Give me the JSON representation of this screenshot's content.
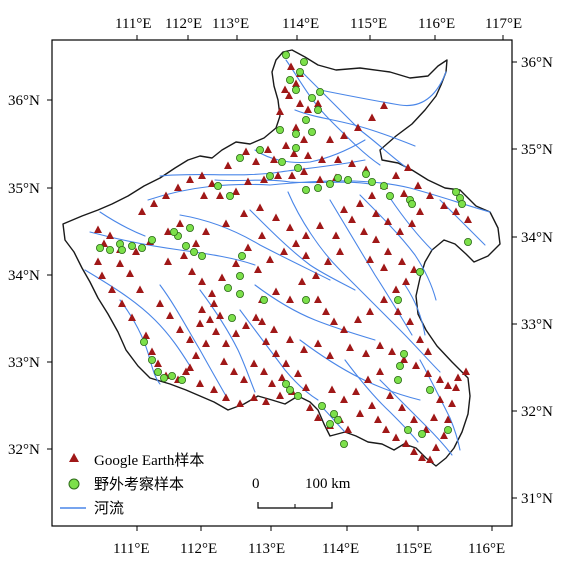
{
  "map": {
    "top_lon_labels": [
      "111°E",
      "112°E",
      "113°E",
      "114°E",
      "115°E",
      "116°E",
      "117°E"
    ],
    "bottom_lon_labels": [
      "111°E",
      "112°E",
      "113°E",
      "114°E",
      "115°E",
      "116°E"
    ],
    "left_lat_labels": [
      "36°N",
      "35°N",
      "34°N",
      "33°N",
      "32°N"
    ],
    "right_lat_labels": [
      "36°N",
      "35°N",
      "34°N",
      "33°N",
      "32°N",
      "31°N"
    ],
    "legend": {
      "items": [
        {
          "label": "Google Earth样本",
          "symbol": "triangle",
          "color": "#a01818"
        },
        {
          "label": "野外考察样本",
          "symbol": "circle",
          "color": "#7ce04a"
        },
        {
          "label": "河流",
          "symbol": "line",
          "color": "#4a86e8"
        }
      ]
    },
    "scale_bar": {
      "start_label": "0",
      "end_label": "100 km"
    },
    "colors": {
      "triangle": "#a01818",
      "circle_fill": "#7ce04a",
      "circle_stroke": "#2e6b1a",
      "river": "#4a86e8",
      "boundary": "#1a1a1a"
    }
  }
}
